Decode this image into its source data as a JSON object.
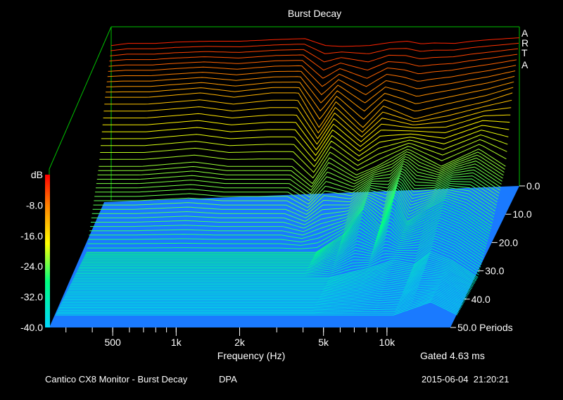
{
  "chart_data": {
    "type": "area",
    "title": "Burst Decay",
    "xlabel": "Frequency (Hz)",
    "ylabel": "dB",
    "zlabel": "Periods",
    "x_ticks": [
      {
        "value": 500,
        "label": "500"
      },
      {
        "value": 1000,
        "label": "1k"
      },
      {
        "value": 2000,
        "label": "2k"
      },
      {
        "value": 5000,
        "label": "5k"
      },
      {
        "value": 10000,
        "label": "10k"
      }
    ],
    "y_ticks": [
      {
        "value": 0,
        "label": "dB"
      },
      {
        "value": -8,
        "label": "-8.0"
      },
      {
        "value": -16,
        "label": "-16.0"
      },
      {
        "value": -24,
        "label": "-24.0"
      },
      {
        "value": -32,
        "label": "-32.0"
      },
      {
        "value": -40,
        "label": "-40.0"
      }
    ],
    "z_ticks": [
      {
        "value": 0,
        "label": "0.0"
      },
      {
        "value": 10,
        "label": "10.0"
      },
      {
        "value": 20,
        "label": "20.0"
      },
      {
        "value": 30,
        "label": "30.0"
      },
      {
        "value": 40,
        "label": "40.0"
      },
      {
        "value": 50,
        "label": "50.0 Periods"
      }
    ],
    "xlim": [
      250,
      20000
    ],
    "ylim": [
      -40,
      0
    ],
    "zlim": [
      0,
      50
    ],
    "x_scale": "log",
    "gating": "Gated 4.63 ms",
    "watermark": [
      "A",
      "R",
      "T",
      "A"
    ],
    "colors": {
      "background": "#000000",
      "floor": "#1a7aff",
      "frame": "#00c000",
      "scale_top": "#ff0000",
      "scale_bottom": "#00d8ff"
    },
    "series": [
      {
        "z": 0,
        "x": [
          250,
          300,
          400,
          500,
          700,
          1000,
          1500,
          2000,
          2500,
          3000,
          4000,
          5000,
          6000,
          7000,
          8000,
          10000,
          12000,
          15000,
          20000
        ],
        "values": [
          -4,
          -3.5,
          -3.5,
          -3.2,
          -3,
          -3,
          -2.6,
          -2.4,
          -4,
          -4.2,
          -4,
          -3.3,
          -3,
          -3.6,
          -3.4,
          -3.5,
          -3,
          -2.6,
          -2.2
        ]
      },
      {
        "z": 5,
        "x": [
          250,
          400,
          700,
          1000,
          1500,
          2000,
          2500,
          3000,
          4000,
          5000,
          7000,
          10000,
          15000,
          20000
        ],
        "values": [
          -13,
          -13,
          -12,
          -13,
          -12,
          -12,
          -20,
          -14,
          -20,
          -15,
          -18,
          -16,
          -14,
          -12
        ]
      },
      {
        "z": 10,
        "x": [
          250,
          400,
          700,
          1000,
          1500,
          2000,
          2500,
          3000,
          4000,
          5000,
          7000,
          10000,
          15000,
          20000
        ],
        "values": [
          -26,
          -26,
          -25,
          -26,
          -26,
          -26,
          -30,
          -24,
          -28,
          -26,
          -22,
          -26,
          -22,
          -26
        ]
      },
      {
        "z": 20,
        "x": [
          250,
          1000,
          2000,
          3000,
          4000,
          5000,
          6000,
          7000,
          8000,
          10000,
          12000,
          15000,
          20000
        ],
        "values": [
          -40,
          -40,
          -40,
          -40,
          -36,
          -30,
          -34,
          -27,
          -33,
          -30,
          -28,
          -30,
          -34
        ]
      },
      {
        "z": 30,
        "x": [
          250,
          2000,
          4000,
          6000,
          8000,
          10000,
          12000,
          15000,
          20000
        ],
        "values": [
          -40,
          -40,
          -40,
          -38,
          -36,
          -37,
          -34,
          -36,
          -40
        ]
      },
      {
        "z": 45,
        "x": [
          250,
          5000,
          10000,
          15000,
          20000
        ],
        "values": [
          -40,
          -40,
          -40,
          -37,
          -40
        ]
      }
    ]
  },
  "footer": {
    "left": "Cantico CX8 Monitor - Burst Decay",
    "middle": "DPA",
    "timestamp": "2015-06-04  21:20:21"
  }
}
